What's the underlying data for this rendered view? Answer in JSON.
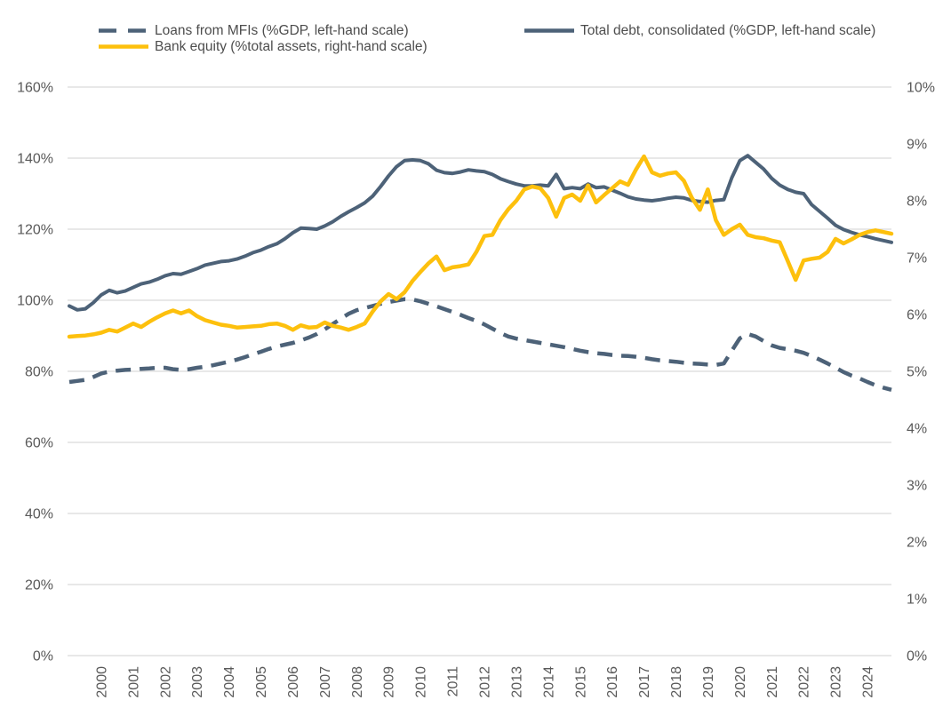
{
  "legend": {
    "items": [
      {
        "label": "Loans from MFIs (%GDP, left-hand scale)",
        "style": "dashed",
        "color": "#4d6278"
      },
      {
        "label": "Total debt, consolidated (%GDP, left-hand scale)",
        "style": "solid",
        "color": "#4d6278"
      },
      {
        "label": "Bank equity (%total assets, right-hand scale)",
        "style": "solid",
        "color": "#fdc00d"
      }
    ]
  },
  "colors": {
    "dark_blue": "#4d6278",
    "yellow": "#fdc00d",
    "gridline": "#d9d9d9",
    "axis_text": "#595959",
    "legend_text": "#4d4d4d",
    "background": "#ffffff"
  },
  "chart_data": {
    "type": "line",
    "title": "",
    "grid": true,
    "legend_position": "top",
    "x_unit": "quarterly",
    "x_start": 1999,
    "x_step": 0.25,
    "x_points": 104,
    "x_tick_labels": [
      "2000",
      "2001",
      "2002",
      "2003",
      "2004",
      "2005",
      "2006",
      "2007",
      "2008",
      "2009",
      "2010",
      "2011",
      "2012",
      "2013",
      "2014",
      "2015",
      "2016",
      "2017",
      "2018",
      "2019",
      "2020",
      "2021",
      "2022",
      "2023",
      "2024"
    ],
    "left_axis": {
      "min": 0,
      "max": 160,
      "step": 20,
      "tick_labels": [
        "160%",
        "140%",
        "120%",
        "100%",
        "80%",
        "60%",
        "40%",
        "20%",
        "0%"
      ]
    },
    "right_axis": {
      "min": 0,
      "max": 10,
      "step": 1,
      "tick_labels": [
        "10%",
        "9%",
        "8%",
        "7%",
        "6%",
        "5%",
        "4%",
        "3%",
        "2%",
        "1%",
        "0%"
      ]
    },
    "series": [
      {
        "name": "Loans from MFIs (%GDP, left-hand scale)",
        "axis": "left",
        "line_style": "dashed",
        "color": "#4d6278",
        "values": [
          77.0,
          77.3,
          77.6,
          78.4,
          79.4,
          79.9,
          80.2,
          80.4,
          80.5,
          80.7,
          80.8,
          81.0,
          81.0,
          80.6,
          80.4,
          80.6,
          81.0,
          81.3,
          81.7,
          82.2,
          82.7,
          83.3,
          84.0,
          84.8,
          85.5,
          86.3,
          87.0,
          87.5,
          88.0,
          88.7,
          89.5,
          90.5,
          91.8,
          93.3,
          94.8,
          96.2,
          97.2,
          97.8,
          98.4,
          99.0,
          99.5,
          99.9,
          100.3,
          100.2,
          99.7,
          99.0,
          98.3,
          97.5,
          96.7,
          95.9,
          95.0,
          94.2,
          93.2,
          92.0,
          90.8,
          89.8,
          89.2,
          88.8,
          88.4,
          88.0,
          87.6,
          87.2,
          86.8,
          86.3,
          85.8,
          85.4,
          85.1,
          84.9,
          84.6,
          84.4,
          84.3,
          84.1,
          83.8,
          83.4,
          83.1,
          82.9,
          82.7,
          82.4,
          82.2,
          82.1,
          81.9,
          81.8,
          82.2,
          85.8,
          89.3,
          90.5,
          89.8,
          88.5,
          87.3,
          86.6,
          86.2,
          85.8,
          85.2,
          84.3,
          83.3,
          82.2,
          81.0,
          79.8,
          78.8,
          78.0,
          77.0,
          76.1,
          75.4,
          74.8
        ]
      },
      {
        "name": "Total debt, consolidated (%GDP, left-hand scale)",
        "axis": "left",
        "line_style": "solid",
        "color": "#4d6278",
        "values": [
          98.4,
          97.3,
          97.6,
          99.3,
          101.5,
          102.8,
          102.1,
          102.6,
          103.6,
          104.6,
          105.1,
          105.9,
          106.9,
          107.5,
          107.3,
          108.1,
          108.9,
          109.9,
          110.4,
          110.9,
          111.1,
          111.6,
          112.4,
          113.4,
          114.1,
          115.1,
          115.9,
          117.3,
          119.0,
          120.3,
          120.2,
          120.0,
          120.9,
          122.1,
          123.6,
          124.9,
          126.1,
          127.4,
          129.3,
          132.0,
          135.0,
          137.6,
          139.3,
          139.5,
          139.3,
          138.4,
          136.6,
          135.9,
          135.7,
          136.1,
          136.7,
          136.4,
          136.2,
          135.4,
          134.2,
          133.4,
          132.7,
          132.2,
          132.2,
          132.4,
          132.2,
          135.4,
          131.4,
          131.7,
          131.4,
          132.7,
          131.7,
          131.9,
          131.0,
          130.1,
          129.1,
          128.5,
          128.2,
          128.0,
          128.3,
          128.7,
          129.0,
          128.8,
          128.1,
          127.8,
          127.6,
          128.1,
          128.3,
          134.5,
          139.3,
          140.7,
          138.8,
          136.9,
          134.3,
          132.4,
          131.2,
          130.4,
          130.0,
          126.9,
          125.0,
          123.1,
          121.1,
          119.9,
          119.1,
          118.4,
          117.9,
          117.3,
          116.8,
          116.3
        ]
      },
      {
        "name": "Bank equity (%total assets, right-hand scale)",
        "axis": "right",
        "line_style": "solid",
        "color": "#fdc00d",
        "values": [
          5.61,
          5.62,
          5.63,
          5.65,
          5.68,
          5.73,
          5.7,
          5.77,
          5.84,
          5.78,
          5.87,
          5.95,
          6.02,
          6.07,
          6.02,
          6.07,
          5.97,
          5.9,
          5.86,
          5.82,
          5.8,
          5.77,
          5.78,
          5.79,
          5.8,
          5.83,
          5.84,
          5.8,
          5.73,
          5.81,
          5.77,
          5.78,
          5.86,
          5.8,
          5.77,
          5.73,
          5.78,
          5.84,
          6.05,
          6.23,
          6.36,
          6.27,
          6.39,
          6.59,
          6.75,
          6.9,
          7.02,
          6.78,
          6.83,
          6.85,
          6.88,
          7.1,
          7.38,
          7.4,
          7.66,
          7.85,
          8.0,
          8.2,
          8.25,
          8.22,
          8.05,
          7.72,
          8.05,
          8.11,
          8.0,
          8.27,
          7.97,
          8.1,
          8.22,
          8.34,
          8.28,
          8.55,
          8.78,
          8.5,
          8.44,
          8.48,
          8.5,
          8.35,
          8.05,
          7.84,
          8.2,
          7.66,
          7.4,
          7.5,
          7.58,
          7.4,
          7.36,
          7.34,
          7.3,
          7.27,
          6.94,
          6.61,
          6.95,
          6.98,
          7.0,
          7.1,
          7.33,
          7.25,
          7.32,
          7.4,
          7.45,
          7.48,
          7.45,
          7.42
        ]
      }
    ]
  }
}
